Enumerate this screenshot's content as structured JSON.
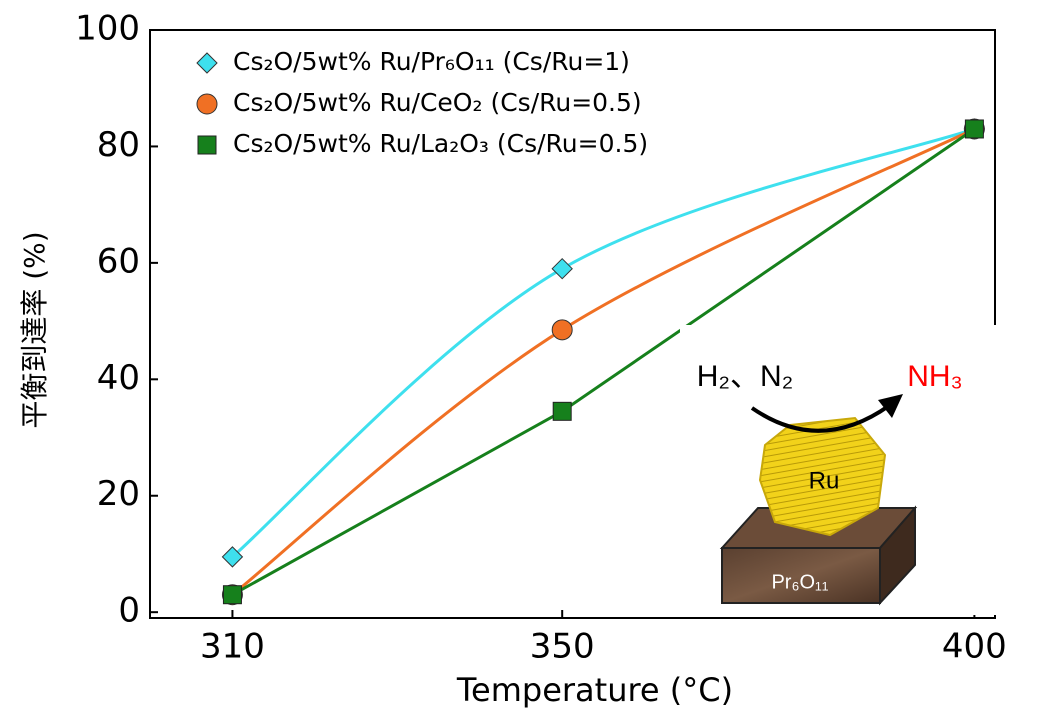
{
  "chart_data": {
    "type": "line",
    "x_label": "Temperature (°C)",
    "y_label": "平衡到達率 (%)",
    "x": [
      310,
      350,
      400
    ],
    "xlim": [
      300,
      402.5
    ],
    "xticks": [
      310,
      350,
      400
    ],
    "ylim": [
      -1,
      100
    ],
    "yticks": [
      0,
      20,
      40,
      60,
      80,
      100
    ],
    "series": [
      {
        "name": "Cs₂O/5wt% Ru/Pr₆O₁₁ (Cs/Ru=1)",
        "color": "#3ee0ee",
        "marker": "diamond",
        "smooth": true,
        "values": [
          9.5,
          59,
          83
        ]
      },
      {
        "name": "Cs₂O/5wt% Ru/CeO₂ (Cs/Ru=0.5)",
        "color": "#f07024",
        "marker": "circle",
        "smooth": true,
        "values": [
          3,
          48.5,
          83
        ]
      },
      {
        "name": "Cs₂O/5wt% Ru/La₂O₃ (Cs/Ru=0.5)",
        "color": "#16801c",
        "marker": "square",
        "smooth": false,
        "values": [
          3,
          34.5,
          83
        ]
      }
    ],
    "inset": {
      "reactants": "H₂、N₂",
      "product": "NH₃",
      "catalyst": "Ru",
      "support": "Pr₆O₁₁"
    }
  }
}
